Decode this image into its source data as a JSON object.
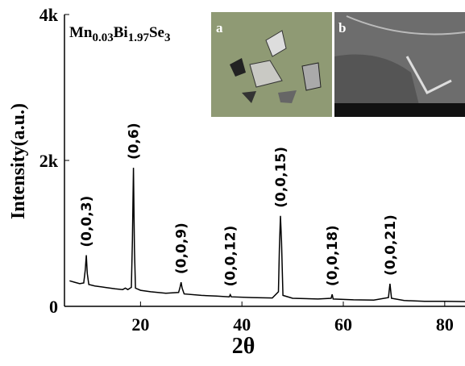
{
  "chart_data": {
    "type": "line",
    "title_parts": [
      "Mn",
      "0.03",
      "Bi",
      "1.97",
      "Se",
      "3"
    ],
    "x_label": "2θ",
    "y_label": "Intensity(a.u.)",
    "inset_labels": [
      "a",
      "b"
    ],
    "xlim": [
      5,
      84
    ],
    "ylim": [
      0,
      4000
    ],
    "xticks": [
      20,
      40,
      60,
      80
    ],
    "yticks": [
      0,
      {
        "value": 2000,
        "label": "2k"
      },
      {
        "value": 4000,
        "label": "4k"
      }
    ],
    "color": "#000000",
    "x": [
      6,
      7,
      8,
      8.8,
      9.1,
      9.3,
      9.5,
      9.8,
      11,
      13,
      15,
      16.5,
      17,
      17.5,
      18.2,
      18.4,
      18.6,
      18.8,
      19,
      20,
      22,
      25,
      27.5,
      27.8,
      28,
      28.2,
      28.6,
      32,
      35,
      37.5,
      37.7,
      37.9,
      42,
      46,
      47.2,
      47.4,
      47.6,
      47.8,
      48.1,
      50,
      55,
      57.6,
      57.8,
      58,
      62,
      66,
      68.9,
      69.2,
      69.5,
      72,
      76,
      80,
      84
    ],
    "values": [
      350,
      330,
      310,
      320,
      500,
      700,
      450,
      300,
      280,
      260,
      240,
      230,
      250,
      230,
      260,
      900,
      1900,
      800,
      250,
      220,
      200,
      180,
      190,
      260,
      330,
      250,
      170,
      150,
      140,
      130,
      160,
      130,
      120,
      115,
      200,
      800,
      1240,
      900,
      150,
      110,
      100,
      110,
      165,
      100,
      90,
      85,
      120,
      310,
      110,
      80,
      70,
      70,
      65
    ],
    "annotations": [
      {
        "text": "(0,0,3)",
        "x": 9.3,
        "y": 700
      },
      {
        "text": "(0,6)",
        "x": 18.6,
        "y": 1900
      },
      {
        "text": "(0,0,9)",
        "x": 28,
        "y": 330
      },
      {
        "text": "(0,0,12)",
        "x": 37.7,
        "y": 160
      },
      {
        "text": "(0,0,15)",
        "x": 47.6,
        "y": 1240
      },
      {
        "text": "(0,0,18)",
        "x": 57.8,
        "y": 165
      },
      {
        "text": "(0,0,21)",
        "x": 69.2,
        "y": 310
      }
    ]
  }
}
